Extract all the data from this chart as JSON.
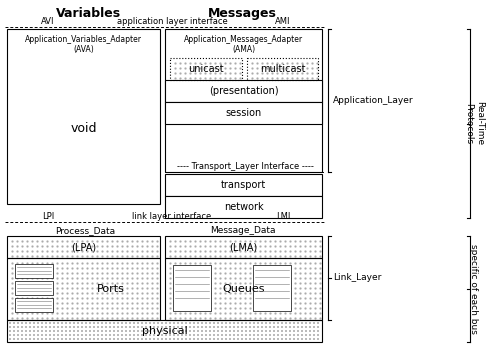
{
  "bg_color": "#ffffff",
  "title_variables": "Variables",
  "title_messages": "Messages",
  "avi_text": "AVI",
  "ami_text": "AMI",
  "app_layer_interface": "application layer interface",
  "lpi_text": "LPI",
  "lmi_text": "LMI",
  "link_layer_interface": "link layer interface",
  "transport_layer_interface": "Transport_Layer Interface",
  "ava_title": "Application_Variables_Adapter",
  "ava_abbr": "(AVA)",
  "ama_title": "Application_Messages_Adapter",
  "ama_abbr": "(AMA)",
  "void_text": "void",
  "unicast_text": "unicast",
  "multicast_text": "multicast",
  "presentation_text": "(presentation)",
  "session_text": "session",
  "transport_text": "transport",
  "network_text": "network",
  "process_data": "Process_Data",
  "message_data": "Message_Data",
  "lpa_text": "(LPA)",
  "lma_text": "(LMA)",
  "ports_text": "Ports",
  "queues_text": "Queues",
  "physical_text": "physical",
  "app_layer_label": "Application_Layer",
  "real_time_label": "Real-Time\nProtocols",
  "link_layer_label": "Link_Layer",
  "specific_label": "specific of each bus"
}
